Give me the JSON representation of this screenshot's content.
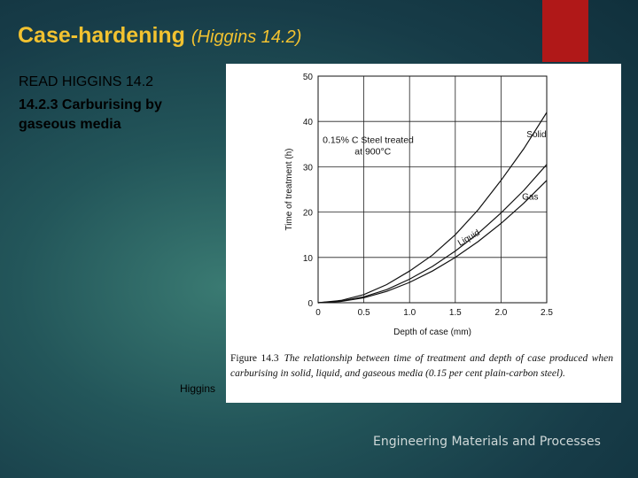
{
  "slide": {
    "title_main": "Case-hardening",
    "title_sub": "(Higgins 14.2)",
    "read_text": "READ HIGGINS 14.2",
    "section_text": "14.2.3 Carburising by gaseous media",
    "side_caption": "Higgins",
    "footer": "Engineering Materials and Processes",
    "accent_color": "#b01818",
    "title_color": "#f2c230"
  },
  "figure": {
    "number": "Figure 14.3",
    "caption": "The relationship between time of treatment and depth of case produced when carburising in solid, liquid, and gaseous media (0.15 per cent plain-carbon steel)."
  },
  "chart_data": {
    "type": "line",
    "xlabel": "Depth of case (mm)",
    "ylabel": "Time of treatment (h)",
    "xlim": [
      0,
      2.5
    ],
    "ylim": [
      0,
      50
    ],
    "xticks": [
      "0",
      "0.5",
      "1.0",
      "1.5",
      "2.0",
      "2.5"
    ],
    "yticks": [
      "0",
      "10",
      "20",
      "30",
      "40",
      "50"
    ],
    "grid": true,
    "annotation": "0.15% C Steel treated at 900°C",
    "series": [
      {
        "name": "Solid",
        "x": [
          0,
          0.25,
          0.5,
          0.75,
          1.0,
          1.25,
          1.5,
          1.75,
          2.0,
          2.25,
          2.5
        ],
        "y": [
          0,
          0.5,
          1.8,
          4,
          7,
          10.5,
          15,
          20.5,
          27,
          34,
          42
        ]
      },
      {
        "name": "Liquid",
        "x": [
          0,
          0.25,
          0.5,
          0.75,
          1.0,
          1.25,
          1.5,
          1.75,
          2.0,
          2.25,
          2.5
        ],
        "y": [
          0,
          0.35,
          1.3,
          2.9,
          5.2,
          8,
          11.4,
          15.3,
          19.8,
          24.8,
          30.5
        ]
      },
      {
        "name": "Gas",
        "x": [
          0,
          0.25,
          0.5,
          0.75,
          1.0,
          1.25,
          1.5,
          1.75,
          2.0,
          2.25,
          2.5
        ],
        "y": [
          0,
          0.3,
          1.1,
          2.5,
          4.5,
          7,
          10,
          13.5,
          17.5,
          22,
          27
        ]
      }
    ]
  }
}
